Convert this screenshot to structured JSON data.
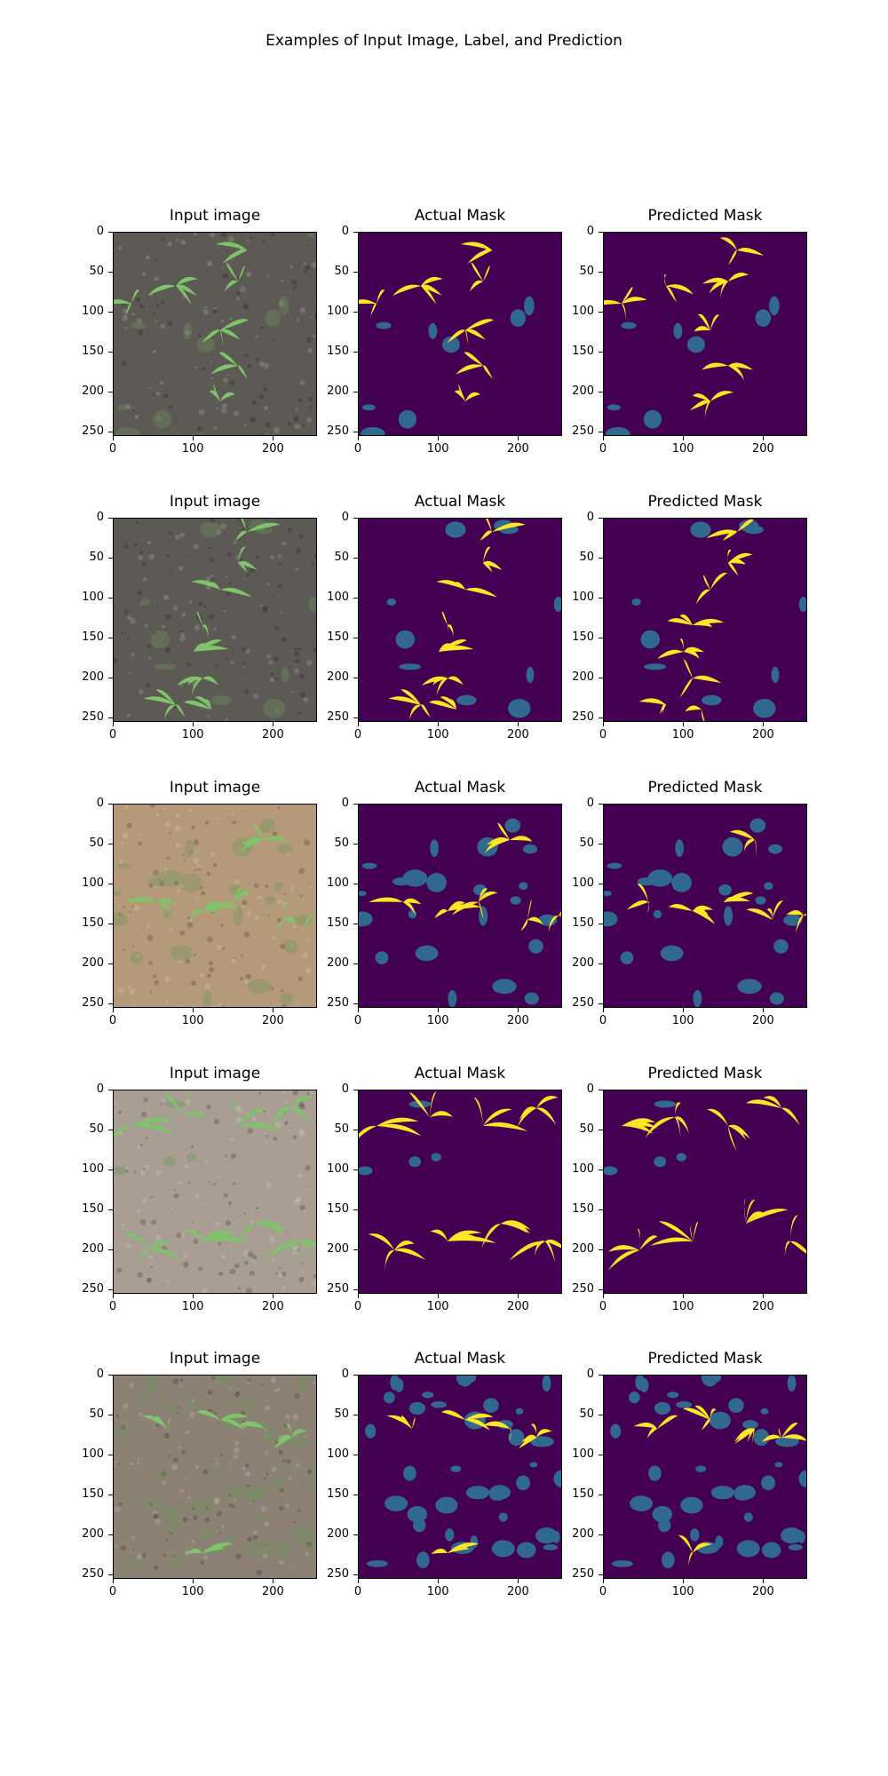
{
  "figure": {
    "title": "Examples of Input Image, Label, and Prediction"
  },
  "colors": {
    "mask_background": "#440154",
    "mask_crop": "#fde725",
    "mask_weed": "#31688e",
    "soil_dark": "#5d5a55",
    "soil_brown": "#b49a78",
    "soil_gray": "#a89e93",
    "soil_mixed": "#8c8175",
    "plant_green": "#7fc46a"
  },
  "chart_data": [
    {
      "type": "image-grid",
      "title": "Examples of Input Image, Label, and Prediction",
      "row_count": 5,
      "columns": [
        "Input image",
        "Actual Mask",
        "Predicted Mask"
      ],
      "xticks": [
        0,
        100,
        200
      ],
      "yticks": [
        0,
        50,
        100,
        150,
        200,
        250
      ],
      "xlim": [
        0,
        255
      ],
      "ylim": [
        255,
        0
      ],
      "grid": false
    }
  ],
  "panels": {
    "column_titles": [
      "Input image",
      "Actual Mask",
      "Predicted Mask"
    ],
    "xtick_labels": [
      "0",
      "100",
      "200"
    ],
    "ytick_labels": [
      "0",
      "50",
      "100",
      "150",
      "200",
      "250"
    ]
  }
}
